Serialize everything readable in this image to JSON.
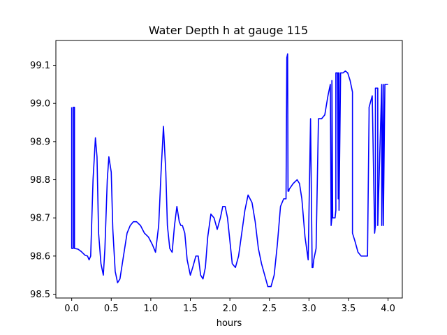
{
  "chart_data": {
    "type": "line",
    "title": "Water Depth h at gauge 115",
    "xlabel": "hours",
    "ylabel": "",
    "xlim": [
      -0.2,
      4.18
    ],
    "ylim": [
      98.49,
      99.165
    ],
    "x_ticks": [
      0.0,
      0.5,
      1.0,
      1.5,
      2.0,
      2.5,
      3.0,
      3.5,
      4.0
    ],
    "x_tick_labels": [
      "0.0",
      "0.5",
      "1.0",
      "1.5",
      "2.0",
      "2.5",
      "3.0",
      "3.5",
      "4.0"
    ],
    "y_ticks": [
      98.5,
      98.6,
      98.7,
      98.8,
      98.9,
      99.0,
      99.1
    ],
    "y_tick_labels": [
      "98.5",
      "98.6",
      "98.7",
      "98.8",
      "98.9",
      "99.0",
      "99.1"
    ],
    "grid": false,
    "legend": "none",
    "series": [
      {
        "color": "#0000ff",
        "x": [
          0.0,
          0.0,
          0.02,
          0.02,
          0.035,
          0.035,
          0.08,
          0.12,
          0.17,
          0.2,
          0.22,
          0.24,
          0.27,
          0.3,
          0.32,
          0.34,
          0.37,
          0.4,
          0.42,
          0.45,
          0.47,
          0.5,
          0.52,
          0.55,
          0.58,
          0.61,
          0.64,
          0.67,
          0.7,
          0.74,
          0.78,
          0.82,
          0.87,
          0.92,
          0.97,
          1.02,
          1.06,
          1.1,
          1.13,
          1.16,
          1.19,
          1.21,
          1.24,
          1.27,
          1.3,
          1.33,
          1.36,
          1.38,
          1.4,
          1.43,
          1.46,
          1.5,
          1.53,
          1.57,
          1.6,
          1.63,
          1.66,
          1.69,
          1.72,
          1.76,
          1.8,
          1.84,
          1.88,
          1.91,
          1.94,
          1.97,
          2.0,
          2.03,
          2.07,
          2.11,
          2.15,
          2.19,
          2.23,
          2.28,
          2.32,
          2.36,
          2.4,
          2.44,
          2.48,
          2.52,
          2.56,
          2.6,
          2.64,
          2.68,
          2.71,
          2.72,
          2.73,
          2.735,
          2.74,
          2.745,
          2.75,
          2.8,
          2.85,
          2.88,
          2.91,
          2.95,
          2.99,
          3.02,
          3.04,
          3.04,
          3.05,
          3.06,
          3.09,
          3.12,
          3.12,
          3.16,
          3.2,
          3.24,
          3.27,
          3.28,
          3.29,
          3.29,
          3.3,
          3.3,
          3.33,
          3.34,
          3.34,
          3.36,
          3.37,
          3.37,
          3.38,
          3.38,
          3.4,
          3.43,
          3.46,
          3.49,
          3.52,
          3.55,
          3.55,
          3.58,
          3.62,
          3.66,
          3.7,
          3.74,
          3.76,
          3.76,
          3.8,
          3.83,
          3.84,
          3.84,
          3.87,
          3.87,
          3.92,
          3.92,
          3.94,
          3.94,
          3.96,
          3.96,
          4.0
        ],
        "y": [
          98.99,
          98.62,
          98.62,
          98.99,
          98.99,
          98.62,
          98.618,
          98.612,
          98.602,
          98.6,
          98.59,
          98.6,
          98.8,
          98.91,
          98.86,
          98.66,
          98.58,
          98.55,
          98.62,
          98.8,
          98.86,
          98.82,
          98.67,
          98.56,
          98.53,
          98.54,
          98.58,
          98.62,
          98.66,
          98.68,
          98.69,
          98.69,
          98.68,
          98.66,
          98.65,
          98.63,
          98.61,
          98.68,
          98.82,
          98.94,
          98.82,
          98.68,
          98.62,
          98.61,
          98.68,
          98.73,
          98.69,
          98.68,
          98.68,
          98.66,
          98.59,
          98.55,
          98.57,
          98.6,
          98.6,
          98.55,
          98.54,
          98.57,
          98.65,
          98.71,
          98.7,
          98.67,
          98.7,
          98.73,
          98.73,
          98.7,
          98.64,
          98.58,
          98.57,
          98.6,
          98.66,
          98.72,
          98.76,
          98.74,
          98.69,
          98.62,
          98.58,
          98.55,
          98.52,
          98.52,
          98.55,
          98.63,
          98.73,
          98.75,
          98.75,
          99.12,
          99.13,
          98.77,
          98.77,
          98.77,
          98.775,
          98.79,
          98.8,
          98.79,
          98.75,
          98.65,
          98.59,
          98.96,
          98.58,
          98.57,
          98.57,
          98.59,
          98.62,
          98.96,
          98.96,
          98.96,
          98.97,
          99.02,
          99.05,
          98.68,
          98.7,
          99.06,
          98.7,
          98.7,
          98.7,
          98.72,
          99.08,
          99.08,
          98.75,
          99.08,
          99.08,
          98.72,
          99.08,
          99.08,
          99.085,
          99.08,
          99.06,
          99.03,
          98.66,
          98.64,
          98.61,
          98.6,
          98.6,
          98.6,
          98.975,
          98.99,
          99.02,
          98.66,
          98.68,
          99.04,
          99.04,
          98.68,
          99.05,
          98.68,
          99.05,
          98.68,
          99.05,
          99.05,
          99.05
        ]
      }
    ]
  }
}
